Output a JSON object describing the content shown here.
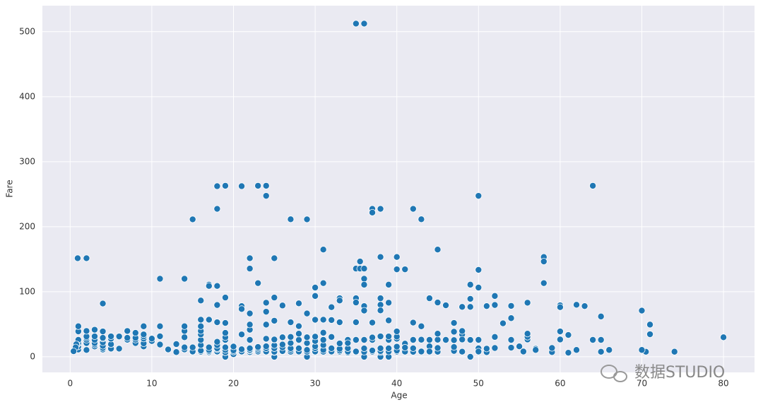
{
  "chart_data": {
    "type": "scatter",
    "xlabel": "Age",
    "ylabel": "Fare",
    "color": "#1f77b4",
    "grid": true,
    "xlim": [
      -3.4,
      83.8
    ],
    "ylim": [
      -24,
      540
    ],
    "xticks": [
      0,
      10,
      20,
      30,
      40,
      50,
      60,
      70,
      80
    ],
    "yticks": [
      0,
      100,
      200,
      300,
      400,
      500
    ],
    "x": [
      35,
      36,
      0.92,
      2,
      4,
      11,
      14,
      15,
      16,
      17,
      17,
      18,
      18,
      18,
      18,
      19,
      19,
      21,
      21,
      22,
      22,
      23,
      23,
      24,
      24,
      24,
      25,
      25,
      27,
      28,
      29,
      29,
      30,
      30,
      31,
      31,
      32,
      33,
      33,
      34,
      35,
      35,
      35,
      35.5,
      35.5,
      36,
      36,
      36,
      36,
      37,
      37,
      37,
      38,
      38,
      38,
      38,
      39,
      39,
      40,
      40,
      41,
      42,
      43,
      44,
      45,
      45,
      46,
      47,
      48,
      49,
      49,
      49,
      50,
      50,
      50,
      51,
      52,
      52,
      54,
      54,
      56,
      58,
      58,
      58,
      60,
      60,
      62,
      63,
      64,
      65,
      70,
      71,
      71,
      74,
      80,
      70.5,
      70,
      66,
      65,
      65,
      64,
      62,
      61,
      61,
      60,
      60,
      59,
      59,
      57,
      57,
      56,
      56,
      56,
      55,
      55.5,
      54,
      54,
      53,
      52,
      52,
      51,
      51,
      50,
      50,
      50,
      49,
      49,
      48,
      48,
      48,
      48,
      47,
      47,
      47,
      47,
      46,
      45,
      45,
      45,
      45,
      44,
      44,
      44,
      43,
      43,
      43,
      42,
      42,
      42,
      42,
      41,
      41,
      41,
      40,
      40,
      40,
      40,
      40,
      40,
      39,
      39,
      39,
      39,
      39,
      39,
      38,
      38,
      38,
      38,
      38,
      38,
      37,
      37,
      37,
      37,
      36,
      36,
      36,
      36,
      36,
      35,
      35,
      35,
      35,
      34,
      34,
      34,
      34,
      33,
      33,
      33,
      33,
      33,
      32,
      32,
      32,
      32,
      32,
      31,
      31,
      31,
      31,
      31,
      31,
      30,
      30,
      30,
      30,
      30,
      30,
      30,
      29,
      29,
      29,
      29,
      29,
      28,
      28,
      28,
      28,
      28,
      28,
      27,
      27,
      27,
      27,
      27,
      27,
      26,
      26,
      26,
      26,
      26,
      26,
      25,
      25,
      25,
      25,
      25,
      25,
      25,
      25,
      24,
      24,
      24,
      24,
      24,
      24,
      24,
      23,
      23,
      23,
      23,
      23,
      22,
      22,
      22,
      22,
      22,
      22,
      22,
      22,
      21,
      21,
      21,
      21,
      21,
      20,
      20,
      20,
      20,
      19,
      19,
      19,
      19,
      19,
      19,
      19,
      19,
      18,
      18,
      18,
      18,
      18,
      18,
      18,
      17,
      17,
      17,
      17,
      17,
      16,
      16,
      16,
      16,
      16,
      16,
      16,
      16,
      15,
      15,
      15,
      14,
      14,
      14,
      14,
      14,
      13,
      13,
      12,
      11,
      11,
      11,
      10,
      10,
      9,
      9,
      9,
      9,
      9,
      9,
      8,
      8,
      8,
      8,
      7,
      7,
      7,
      6,
      6,
      5,
      5,
      5,
      5,
      4,
      4,
      4,
      4,
      4,
      4,
      4,
      3,
      3,
      3,
      3,
      3,
      3,
      2,
      2,
      2,
      2,
      2,
      2,
      1,
      1,
      1,
      1,
      1,
      1,
      0.83,
      0.75,
      0.67,
      0.42
    ],
    "values": [
      512.33,
      512.33,
      151.55,
      151.55,
      81.86,
      120,
      120,
      211.34,
      86.5,
      110.88,
      108.9,
      262.38,
      227.53,
      79.65,
      108.9,
      263,
      91.08,
      262.38,
      77.96,
      151.55,
      135.63,
      263,
      113.28,
      263,
      247.52,
      83.16,
      151.55,
      91.08,
      211.5,
      82.17,
      211.34,
      66.6,
      106.43,
      93.5,
      164.87,
      113.28,
      76.29,
      90,
      86.5,
      26,
      135.63,
      90,
      83.48,
      146.52,
      135.63,
      135.63,
      120,
      110.88,
      77.96,
      227.53,
      221.78,
      52.55,
      227.53,
      153.46,
      80,
      90,
      110.88,
      83.16,
      153.46,
      134.5,
      134.5,
      227.53,
      211.5,
      90,
      164.87,
      83.48,
      79.2,
      52,
      76.73,
      110.88,
      89.1,
      76.73,
      247.52,
      133.65,
      106.43,
      77.96,
      93.5,
      79.65,
      78.27,
      59.4,
      83.16,
      153.46,
      146.52,
      113.28,
      79.2,
      76.29,
      80,
      77.96,
      263,
      61.98,
      71,
      49.5,
      34.65,
      7.78,
      30,
      7.75,
      10.5,
      10.5,
      26,
      7.75,
      26,
      10.5,
      6.24,
      33.5,
      39,
      26.55,
      7.25,
      13.5,
      12.35,
      10.5,
      26.55,
      30.7,
      35.5,
      16,
      8.05,
      26,
      14,
      51.48,
      13.5,
      30.5,
      7.05,
      12.52,
      13,
      26,
      8.05,
      0,
      25.93,
      7.85,
      34.38,
      26.55,
      39.6,
      9,
      15,
      25.59,
      38.5,
      26,
      7.75,
      13.5,
      26.25,
      35.5,
      16.1,
      8.05,
      26,
      8.05,
      26.25,
      46.9,
      7.55,
      13,
      26,
      52.55,
      7.85,
      20.21,
      14.11,
      7.9,
      9.5,
      15.5,
      27.72,
      31,
      39,
      0,
      7.9,
      13,
      26,
      31.27,
      55.9,
      0,
      7.05,
      8.66,
      13,
      31.39,
      71.28,
      7.92,
      26,
      29.7,
      9.59,
      0,
      7.5,
      12.88,
      26,
      71,
      7.05,
      8.05,
      26,
      53.1,
      6.5,
      8.05,
      13,
      21,
      7.9,
      9.5,
      12.28,
      20.52,
      53.1,
      7.92,
      8.05,
      13,
      30.5,
      56.5,
      7.75,
      10.5,
      18,
      26,
      37,
      57,
      7.23,
      8.05,
      13,
      16.1,
      24.15,
      31,
      56.93,
      0,
      7.75,
      10.5,
      21,
      30,
      7.9,
      8.05,
      13,
      26,
      35.5,
      47.1,
      7.8,
      10.5,
      13,
      21,
      30.5,
      53.1,
      7.9,
      8.66,
      14.45,
      18.79,
      30,
      78.85,
      0,
      7.05,
      7.65,
      13,
      17.8,
      26,
      26.55,
      55.44,
      7.5,
      8.05,
      13,
      16.1,
      27.72,
      49.5,
      69.3,
      7.85,
      8.05,
      10.5,
      13,
      15.05,
      7.25,
      9.35,
      10.5,
      13,
      26,
      41.58,
      49.5,
      66.6,
      7.8,
      8.05,
      11.5,
      34.38,
      73.5,
      4.01,
      7.85,
      9.85,
      15.74,
      0,
      6.75,
      10.5,
      14.5,
      26,
      30,
      36.75,
      52,
      7.5,
      8.05,
      11.5,
      13,
      17.8,
      23,
      53.1,
      7.05,
      8.66,
      10.5,
      14.46,
      57,
      7.75,
      9.5,
      18,
      26,
      34.38,
      39.69,
      46.9,
      57,
      7.23,
      8.03,
      14.45,
      11.24,
      14.45,
      30.07,
      39.69,
      46.9,
      7.23,
      19.5,
      11.24,
      18.79,
      31.5,
      46.9,
      24.15,
      27.9,
      15.9,
      20.52,
      27.9,
      31.27,
      34.38,
      46.9,
      21.08,
      26.25,
      29.13,
      36.75,
      26.25,
      29.13,
      39.69,
      12.48,
      31.27,
      12.48,
      19.26,
      27.75,
      31.39,
      11.13,
      13.42,
      16.7,
      22.03,
      27.9,
      29.13,
      39,
      15.9,
      18.75,
      21.08,
      26,
      31.39,
      41.58,
      10.46,
      21.08,
      26,
      29.13,
      31.27,
      39.69,
      11.13,
      15.74,
      20.58,
      26,
      39,
      46.9,
      18.75,
      19.26,
      14.5,
      8.52
    ]
  },
  "watermark": "数据STUDIO"
}
